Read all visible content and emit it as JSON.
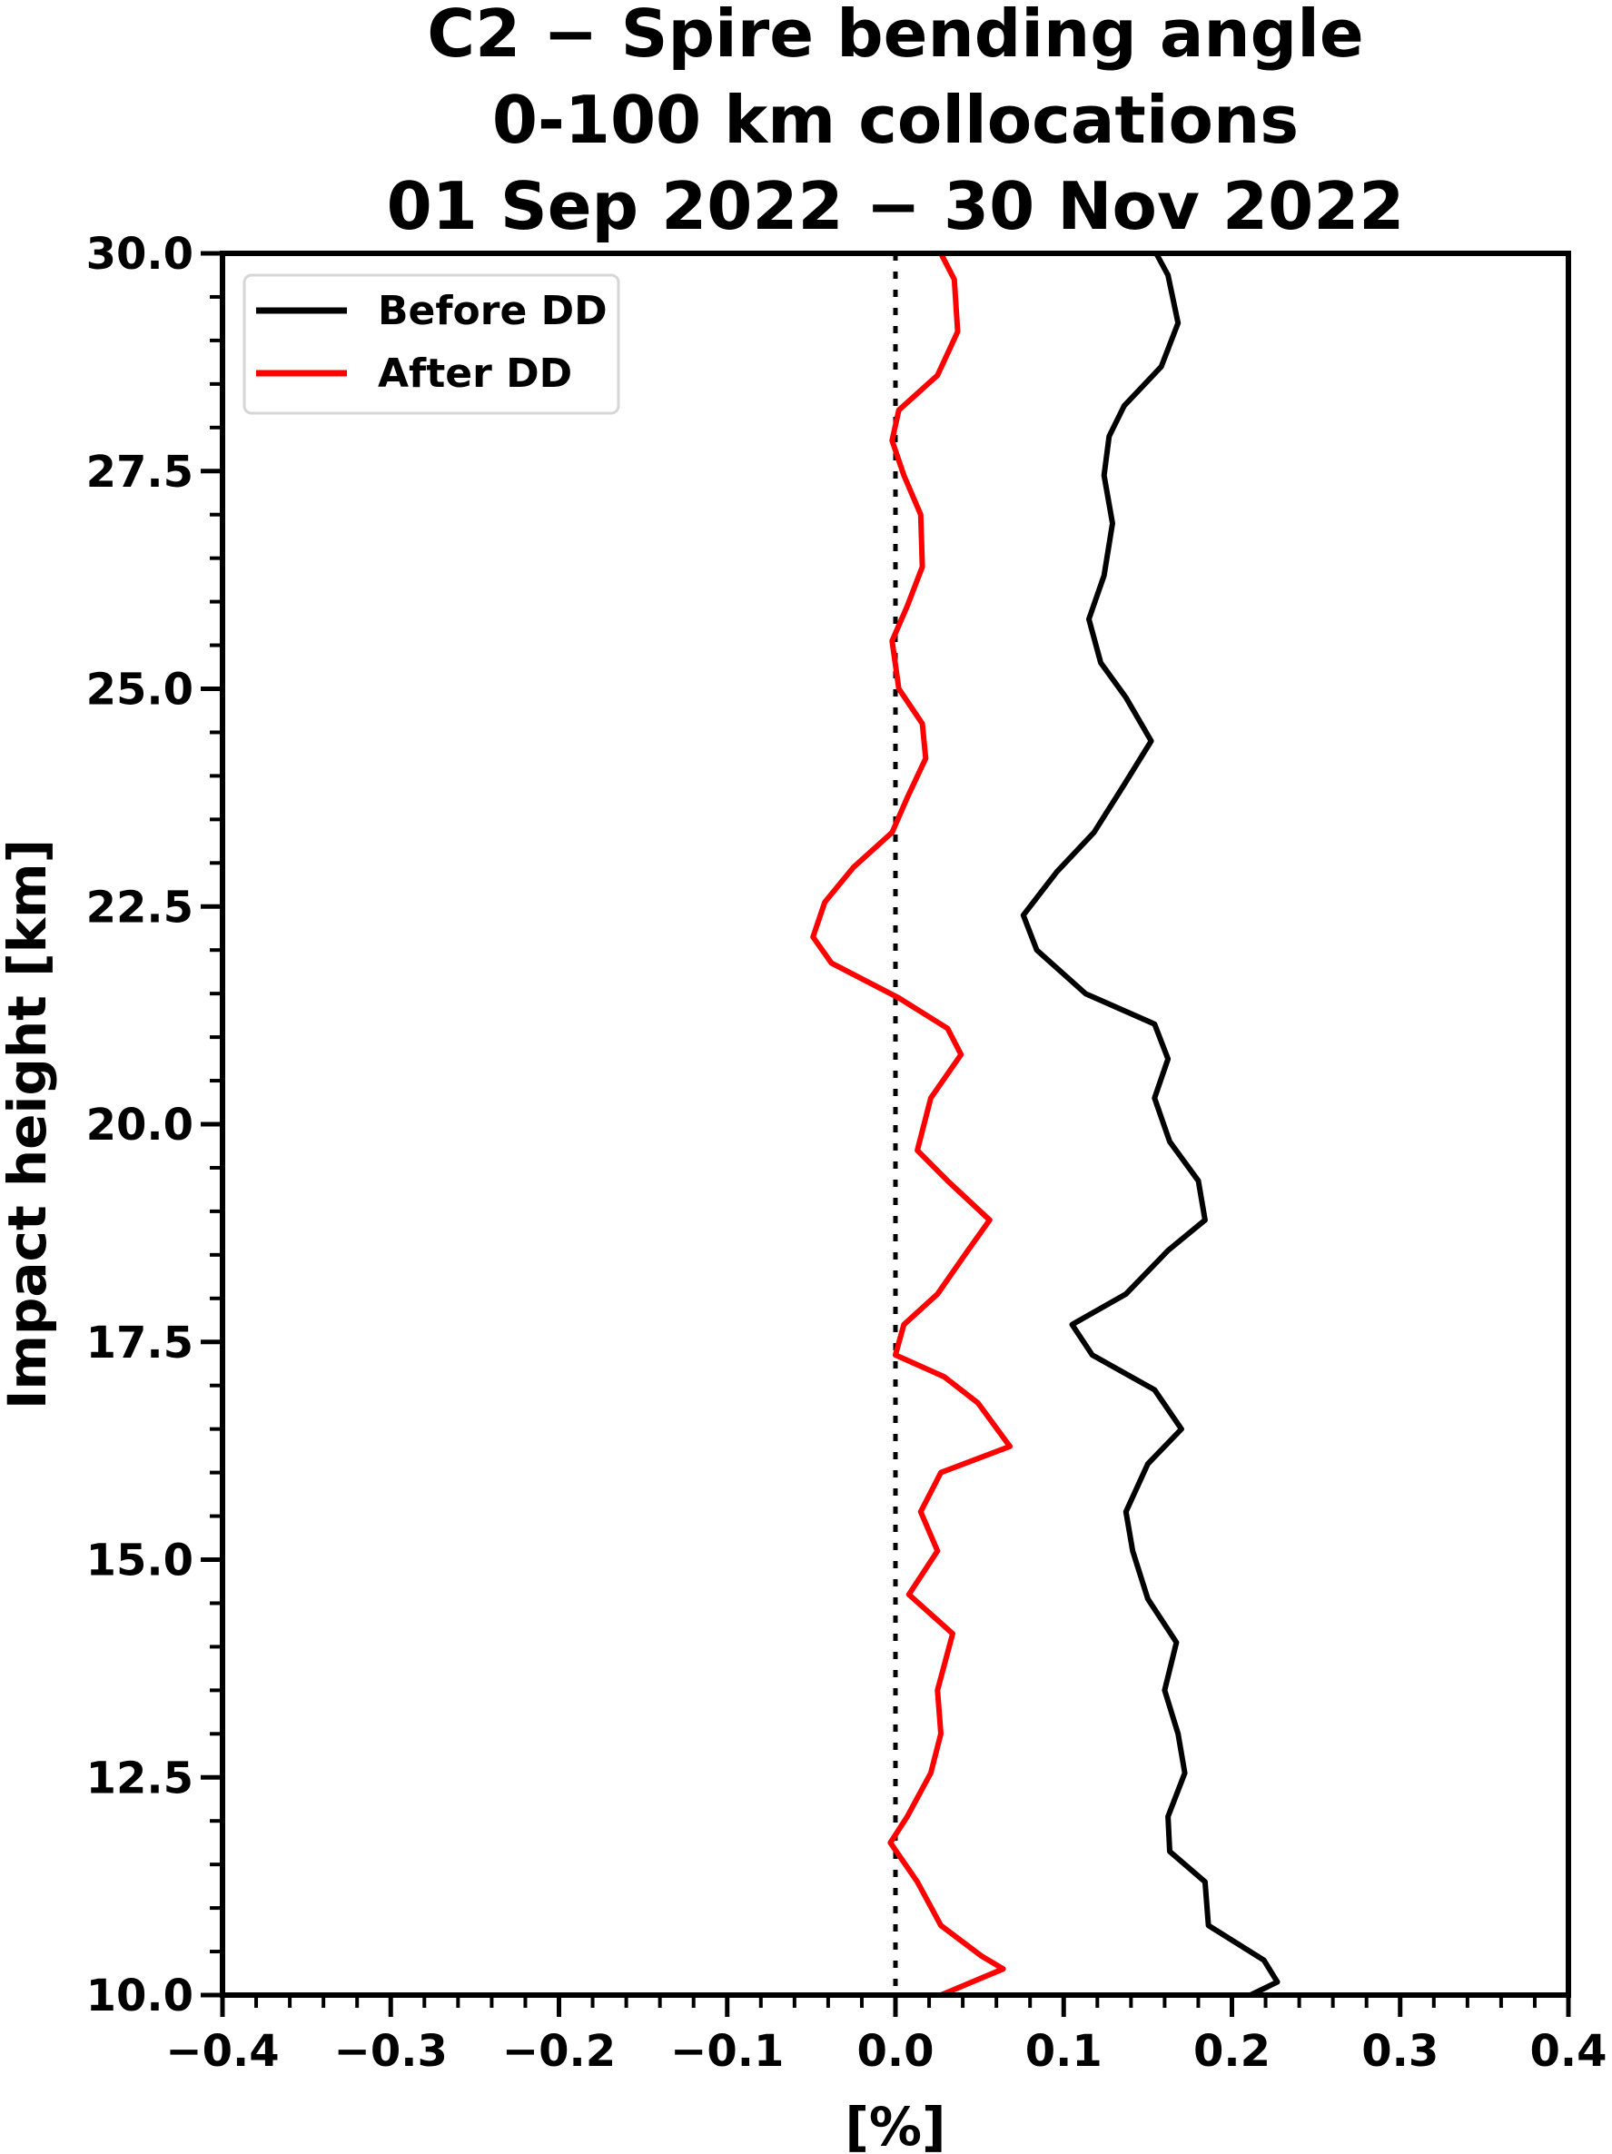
{
  "chart_data": {
    "type": "line",
    "title_lines": [
      "C2 − Spire bending angle",
      "0-100 km collocations",
      "01 Sep 2022 − 30 Nov 2022"
    ],
    "xlabel": "[%]",
    "ylabel": "Impact height [km]",
    "xlim": [
      -0.4,
      0.4
    ],
    "ylim": [
      10.0,
      30.0
    ],
    "xticks": [
      "−0.4",
      "−0.3",
      "−0.2",
      "−0.1",
      "0.0",
      "0.1",
      "0.2",
      "0.3",
      "0.4"
    ],
    "yticks": [
      "10.0",
      "12.5",
      "15.0",
      "17.5",
      "20.0",
      "22.5",
      "25.0",
      "27.5",
      "30.0"
    ],
    "grid": false,
    "legend_placement": "upper-left",
    "reference_line": {
      "x": 0.0,
      "style": "dotted",
      "color": "#000000"
    },
    "series": [
      {
        "name": "Before DD",
        "color": "#000000",
        "points": [
          [
            0.155,
            30.0
          ],
          [
            0.162,
            29.75
          ],
          [
            0.168,
            29.2
          ],
          [
            0.158,
            28.7
          ],
          [
            0.136,
            28.25
          ],
          [
            0.127,
            27.9
          ],
          [
            0.124,
            27.45
          ],
          [
            0.129,
            26.9
          ],
          [
            0.124,
            26.3
          ],
          [
            0.115,
            25.8
          ],
          [
            0.122,
            25.3
          ],
          [
            0.137,
            24.9
          ],
          [
            0.152,
            24.4
          ],
          [
            0.136,
            23.9
          ],
          [
            0.118,
            23.35
          ],
          [
            0.096,
            22.9
          ],
          [
            0.076,
            22.4
          ],
          [
            0.084,
            22.0
          ],
          [
            0.113,
            21.5
          ],
          [
            0.154,
            21.15
          ],
          [
            0.162,
            20.75
          ],
          [
            0.154,
            20.3
          ],
          [
            0.163,
            19.8
          ],
          [
            0.18,
            19.35
          ],
          [
            0.184,
            18.9
          ],
          [
            0.162,
            18.55
          ],
          [
            0.137,
            18.05
          ],
          [
            0.105,
            17.7
          ],
          [
            0.117,
            17.35
          ],
          [
            0.154,
            16.95
          ],
          [
            0.17,
            16.5
          ],
          [
            0.15,
            16.1
          ],
          [
            0.137,
            15.55
          ],
          [
            0.141,
            15.1
          ],
          [
            0.15,
            14.55
          ],
          [
            0.167,
            14.05
          ],
          [
            0.16,
            13.5
          ],
          [
            0.168,
            13.0
          ],
          [
            0.172,
            12.55
          ],
          [
            0.162,
            12.05
          ],
          [
            0.163,
            11.65
          ],
          [
            0.184,
            11.3
          ],
          [
            0.186,
            10.8
          ],
          [
            0.219,
            10.4
          ],
          [
            0.227,
            10.15
          ],
          [
            0.211,
            10.0
          ]
        ]
      },
      {
        "name": "After DD",
        "color": "#ff0000",
        "points": [
          [
            0.027,
            30.0
          ],
          [
            0.035,
            29.7
          ],
          [
            0.037,
            29.1
          ],
          [
            0.025,
            28.6
          ],
          [
            0.002,
            28.2
          ],
          [
            -0.002,
            27.85
          ],
          [
            0.005,
            27.45
          ],
          [
            0.015,
            27.0
          ],
          [
            0.016,
            26.4
          ],
          [
            0.007,
            25.95
          ],
          [
            -0.002,
            25.55
          ],
          [
            0.002,
            25.0
          ],
          [
            0.016,
            24.6
          ],
          [
            0.018,
            24.2
          ],
          [
            0.007,
            23.75
          ],
          [
            -0.002,
            23.35
          ],
          [
            -0.025,
            22.95
          ],
          [
            -0.042,
            22.55
          ],
          [
            -0.049,
            22.15
          ],
          [
            -0.038,
            21.85
          ],
          [
            0.002,
            21.45
          ],
          [
            0.031,
            21.1
          ],
          [
            0.039,
            20.8
          ],
          [
            0.021,
            20.3
          ],
          [
            0.013,
            19.7
          ],
          [
            0.031,
            19.35
          ],
          [
            0.056,
            18.9
          ],
          [
            0.043,
            18.55
          ],
          [
            0.025,
            18.05
          ],
          [
            0.005,
            17.7
          ],
          [
            0.0,
            17.35
          ],
          [
            0.029,
            17.1
          ],
          [
            0.049,
            16.8
          ],
          [
            0.068,
            16.3
          ],
          [
            0.027,
            16.0
          ],
          [
            0.015,
            15.55
          ],
          [
            0.025,
            15.1
          ],
          [
            0.008,
            14.6
          ],
          [
            0.034,
            14.15
          ],
          [
            0.025,
            13.5
          ],
          [
            0.027,
            13.0
          ],
          [
            0.021,
            12.55
          ],
          [
            0.007,
            12.05
          ],
          [
            -0.003,
            11.75
          ],
          [
            0.013,
            11.3
          ],
          [
            0.027,
            10.8
          ],
          [
            0.051,
            10.45
          ],
          [
            0.064,
            10.3
          ],
          [
            0.027,
            10.0
          ]
        ]
      }
    ]
  }
}
